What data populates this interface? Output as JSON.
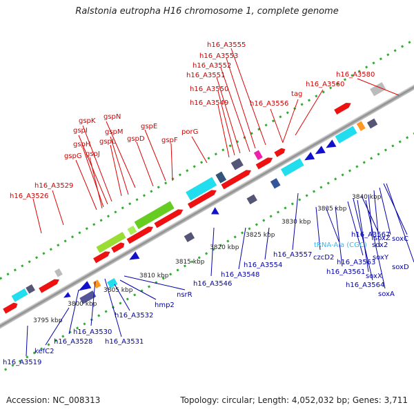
{
  "title": "Ralstonia eutropha H16 chromosome 1, complete genome",
  "footer": {
    "accession": "Accession: NC_008313",
    "summary": "Topology: circular; Length: 4,052,032 bp; Genes: 3,711"
  },
  "scale_labels": [
    "3795 kbp",
    "3800 kbp",
    "3805 kbp",
    "3810 kbp",
    "3815 kbp",
    "3820 kbp",
    "3825 kbp",
    "3830 kbp",
    "3835 kbp",
    "3840 kbp"
  ],
  "forward_labels": [
    "h16_A3555",
    "h16_A3553",
    "h16_A3552",
    "h16_A3551",
    "h16_A3550",
    "h16_A3549",
    "h16_A3556",
    "tag",
    "h16_A3560",
    "h16_A3580",
    "gspN",
    "gspK",
    "gspI",
    "gspM",
    "gspH",
    "gspL",
    "gspJ",
    "gspE",
    "gspD",
    "gspF",
    "gspG",
    "porG",
    "h16_A3529",
    "h16_A3526"
  ],
  "reverse_labels": [
    "h16_A3519",
    "kefC2",
    "h16_A3528",
    "h16_A3530",
    "h16_A3531",
    "h16_A3532",
    "hmp2",
    "nsrR",
    "h16_A3546",
    "h16_A3548",
    "h16_A3554",
    "h16_A3557",
    "czcD2",
    "tRNA-Ala (CGC)",
    "h16_A3561",
    "h16_A3563",
    "h16_A3564",
    "h16_A3567",
    "sox2",
    "soxY",
    "soxX",
    "soxA",
    "soxZ",
    "soxC",
    "soxD"
  ],
  "colors": {
    "forward_label": "#cc0000",
    "reverse_label": "#0000aa",
    "trna_label": "#33bbee",
    "cds_forward": "#ee1111",
    "cds_reverse": "#1111cc",
    "backbone": "#999999",
    "tick_dots": "#33aa33"
  }
}
